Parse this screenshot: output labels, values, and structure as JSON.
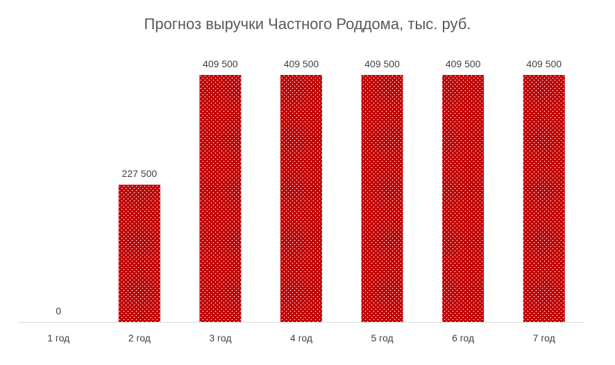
{
  "chart_data": {
    "type": "bar",
    "title": "Прогноз выручки Частного Роддома, тыс. руб.",
    "categories": [
      "1 год",
      "2 год",
      "3 год",
      "4 год",
      "5 год",
      "6 год",
      "7 год"
    ],
    "values": [
      0,
      227500,
      409500,
      409500,
      409500,
      409500,
      409500
    ],
    "data_labels": [
      "0",
      "227 500",
      "409 500",
      "409 500",
      "409 500",
      "409 500",
      "409 500"
    ],
    "xlabel": "",
    "ylabel": "",
    "ylim": [
      0,
      409500
    ],
    "grid": false,
    "legend": "none",
    "colors": {
      "bar_fill": "#C00000",
      "bar_dots": "#FFFFFF",
      "title": "#595959",
      "labels": "#404040",
      "axis": "#D9D9D9"
    }
  }
}
